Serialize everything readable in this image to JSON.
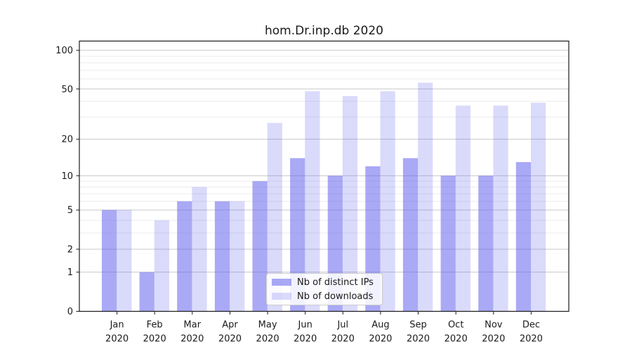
{
  "title": "hom.Dr.inp.db 2020",
  "chart_data": {
    "type": "bar",
    "scale": "log1p",
    "title": "hom.Dr.inp.db 2020",
    "categories": [
      "Jan",
      "Feb",
      "Mar",
      "Apr",
      "May",
      "Jun",
      "Jul",
      "Aug",
      "Sep",
      "Oct",
      "Nov",
      "Dec"
    ],
    "category_year": "2020",
    "series": [
      {
        "name": "Nb of distinct IPs",
        "color": "#6363ed",
        "alpha": 0.55,
        "values": [
          5,
          1,
          6,
          6,
          9,
          14,
          10,
          12,
          14,
          10,
          10,
          13
        ]
      },
      {
        "name": "Nb of downloads",
        "color": "#6363ed",
        "alpha": 0.24,
        "values": [
          5,
          4,
          8,
          6,
          27,
          48,
          44,
          48,
          56,
          37,
          37,
          39
        ]
      }
    ],
    "xlabel": "",
    "ylabel": "",
    "ylim": [
      0,
      118
    ],
    "yticks_major": [
      0,
      1,
      2,
      5,
      10,
      20,
      50,
      100
    ],
    "yticks_minor": [
      3,
      4,
      6,
      7,
      8,
      9,
      30,
      40,
      60,
      70,
      80,
      90
    ],
    "grid": true,
    "legend_position": "lower center"
  }
}
